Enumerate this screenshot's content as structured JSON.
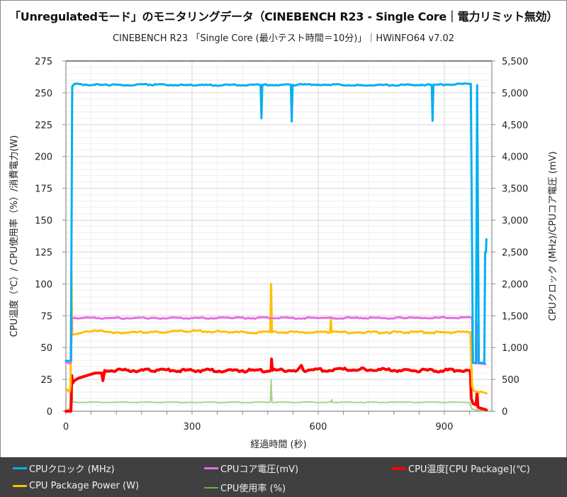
{
  "header": {
    "title": "「Unregulatedモード」のモニタリングデータ（CINEBENCH R23 - Single Core｜電力リミット無効）",
    "subtitle": "CINEBENCH R23 「Single Core (最小テスト時間＝10分)」｜HWiNFO64 v7.02"
  },
  "chart_data": {
    "type": "line",
    "title": "「Unregulatedモード」のモニタリングデータ（CINEBENCH R23 - Single Core｜電力リミット無効）",
    "subtitle": "CINEBENCH R23 「Single Core (最小テスト時間＝10分)」｜HWiNFO64 v7.02",
    "xlabel": "経過時間 (秒)",
    "ylabel_left": "CPU温度（℃）/ CPU使用率（%）/消費電力(W)",
    "ylabel_right": "CPUクロック (MHz)/CPUコア電圧 (mV)",
    "xlim": [
      0,
      1013
    ],
    "ylim_left": [
      0,
      275
    ],
    "ylim_right": [
      0,
      5500
    ],
    "x_ticks": [
      "0",
      "300",
      "600",
      "900"
    ],
    "x_tick_values": [
      0,
      300,
      600,
      900
    ],
    "y_left_ticks": [
      "0",
      "25",
      "50",
      "75",
      "100",
      "125",
      "150",
      "175",
      "200",
      "225",
      "250",
      "275"
    ],
    "y_right_ticks": [
      "0",
      "500",
      "1,000",
      "1,500",
      "2,000",
      "2,500",
      "3,000",
      "3,500",
      "4,000",
      "4,500",
      "5,000",
      "5,500"
    ],
    "grid": true,
    "legend_position": "bottom",
    "series": [
      {
        "name": "CPUクロック (MHz)",
        "axis": "right",
        "color": "#00b0f0",
        "width": 3,
        "points": [
          [
            0,
            790
          ],
          [
            10,
            790
          ],
          [
            12,
            790
          ],
          [
            15,
            5100
          ],
          [
            20,
            5140
          ],
          [
            100,
            5120
          ],
          [
            200,
            5130
          ],
          [
            300,
            5120
          ],
          [
            460,
            5125
          ],
          [
            463,
            5125
          ],
          [
            465,
            4600
          ],
          [
            467,
            5125
          ],
          [
            535,
            5125
          ],
          [
            537,
            4550
          ],
          [
            539,
            5125
          ],
          [
            600,
            5130
          ],
          [
            700,
            5120
          ],
          [
            870,
            5125
          ],
          [
            872,
            4560
          ],
          [
            874,
            5125
          ],
          [
            960,
            5140
          ],
          [
            963,
            5140
          ],
          [
            968,
            760
          ],
          [
            975,
            760
          ],
          [
            978,
            5120
          ],
          [
            982,
            760
          ],
          [
            995,
            760
          ],
          [
            997,
            2500
          ],
          [
            999,
            2500
          ],
          [
            1000,
            2700
          ]
        ]
      },
      {
        "name": "CPUコア電圧(mV)",
        "axis": "right",
        "color": "#e86ee0",
        "width": 3,
        "points": [
          [
            0,
            770
          ],
          [
            8,
            750
          ],
          [
            12,
            760
          ],
          [
            14,
            1460
          ],
          [
            20,
            1465
          ],
          [
            200,
            1462
          ],
          [
            400,
            1465
          ],
          [
            600,
            1463
          ],
          [
            800,
            1465
          ],
          [
            963,
            1470
          ],
          [
            966,
            1470
          ],
          [
            968,
            760
          ],
          [
            975,
            750
          ],
          [
            978,
            1370
          ],
          [
            980,
            750
          ],
          [
            998,
            740
          ]
        ]
      },
      {
        "name": "CPU温度[CPU Package](℃)",
        "axis": "left",
        "color": "#ff0000",
        "width": 4,
        "points": [
          [
            0,
            0
          ],
          [
            12,
            0
          ],
          [
            14,
            28
          ],
          [
            16,
            22
          ],
          [
            20,
            24
          ],
          [
            30,
            26
          ],
          [
            50,
            28
          ],
          [
            70,
            30
          ],
          [
            85,
            30
          ],
          [
            88,
            24
          ],
          [
            92,
            32
          ],
          [
            120,
            32
          ],
          [
            200,
            32
          ],
          [
            300,
            32
          ],
          [
            420,
            32
          ],
          [
            488,
            32
          ],
          [
            489,
            41
          ],
          [
            491,
            32
          ],
          [
            550,
            32
          ],
          [
            560,
            36
          ],
          [
            565,
            32
          ],
          [
            700,
            33
          ],
          [
            800,
            32
          ],
          [
            900,
            32
          ],
          [
            960,
            32
          ],
          [
            962,
            30
          ],
          [
            964,
            10
          ],
          [
            968,
            6
          ],
          [
            975,
            5
          ],
          [
            978,
            15
          ],
          [
            980,
            3
          ],
          [
            990,
            2
          ],
          [
            1000,
            1
          ]
        ]
      },
      {
        "name": "CPU Package Power (W)",
        "axis": "left",
        "color": "#ffc000",
        "width": 3,
        "points": [
          [
            0,
            18
          ],
          [
            6,
            16
          ],
          [
            9,
            15
          ],
          [
            11,
            20
          ],
          [
            13,
            112
          ],
          [
            15,
            60
          ],
          [
            30,
            61
          ],
          [
            60,
            63
          ],
          [
            120,
            62
          ],
          [
            200,
            62
          ],
          [
            300,
            63
          ],
          [
            400,
            62
          ],
          [
            486,
            62
          ],
          [
            488,
            100
          ],
          [
            490,
            62
          ],
          [
            560,
            62
          ],
          [
            628,
            62
          ],
          [
            630,
            72
          ],
          [
            632,
            62
          ],
          [
            700,
            62
          ],
          [
            800,
            62
          ],
          [
            900,
            62
          ],
          [
            962,
            62
          ],
          [
            966,
            20
          ],
          [
            970,
            16
          ],
          [
            1000,
            14
          ]
        ]
      },
      {
        "name": "CPU使用率 (%)",
        "axis": "left",
        "color": "#a9d18e",
        "width": 2,
        "points": [
          [
            0,
            1
          ],
          [
            10,
            2
          ],
          [
            12,
            30
          ],
          [
            14,
            20
          ],
          [
            16,
            7
          ],
          [
            100,
            7
          ],
          [
            300,
            7
          ],
          [
            486,
            7
          ],
          [
            488,
            25
          ],
          [
            490,
            7
          ],
          [
            630,
            7
          ],
          [
            632,
            9
          ],
          [
            634,
            7
          ],
          [
            800,
            7
          ],
          [
            960,
            7
          ],
          [
            965,
            2
          ],
          [
            975,
            1
          ],
          [
            1000,
            0
          ]
        ]
      }
    ]
  },
  "legend": {
    "items": [
      {
        "label": "CPUクロック (MHz)",
        "color": "#00b0f0"
      },
      {
        "label": "CPUコア電圧(mV)",
        "color": "#e86ee0"
      },
      {
        "label": "CPU温度[CPU Package](℃)",
        "color": "#ff0000"
      },
      {
        "label": "CPU Package Power (W)",
        "color": "#ffc000"
      },
      {
        "label": "CPU使用率 (%)",
        "color": "#70ad47"
      }
    ]
  }
}
